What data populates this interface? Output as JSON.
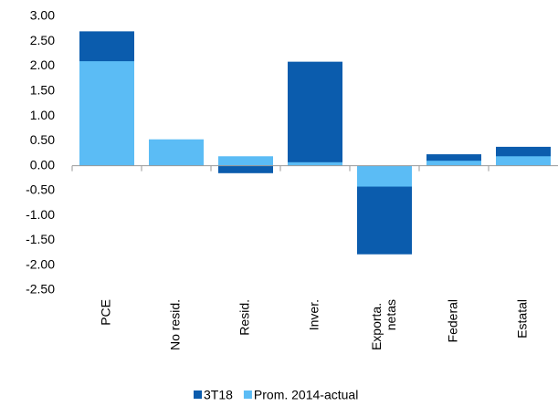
{
  "chart_data": {
    "type": "bar",
    "categories": [
      "PCE",
      "No resid.",
      "Resid.",
      "Inver.",
      "Exporta. netas",
      "Federal",
      "Estatal"
    ],
    "series": [
      {
        "name": "3T18",
        "color": "#0b5cad",
        "values": [
          2.7,
          0.45,
          -0.15,
          2.09,
          -1.78,
          0.23,
          0.38
        ]
      },
      {
        "name": "Prom. 2014-actual",
        "color": "#5bbcf5",
        "values": [
          2.1,
          0.53,
          0.19,
          0.07,
          -0.42,
          0.1,
          0.19
        ]
      }
    ],
    "ylim": [
      -2.5,
      3.0
    ],
    "yticks": [
      {
        "value": 3.0,
        "label": "3.00"
      },
      {
        "value": 2.5,
        "label": "2.50"
      },
      {
        "value": 2.0,
        "label": "2.00"
      },
      {
        "value": 1.5,
        "label": "1.50"
      },
      {
        "value": 1.0,
        "label": "1.00"
      },
      {
        "value": 0.5,
        "label": "0.50"
      },
      {
        "value": 0,
        "label": "0.00"
      },
      {
        "value": -0.5,
        "label": "-0.50"
      },
      {
        "value": -1.0,
        "label": "-1.00"
      },
      {
        "value": -1.5,
        "label": "-1.50"
      },
      {
        "value": -2.0,
        "label": "-2.00"
      },
      {
        "value": -2.5,
        "label": "-2.50"
      }
    ],
    "grid": false,
    "legend": "bottom"
  }
}
